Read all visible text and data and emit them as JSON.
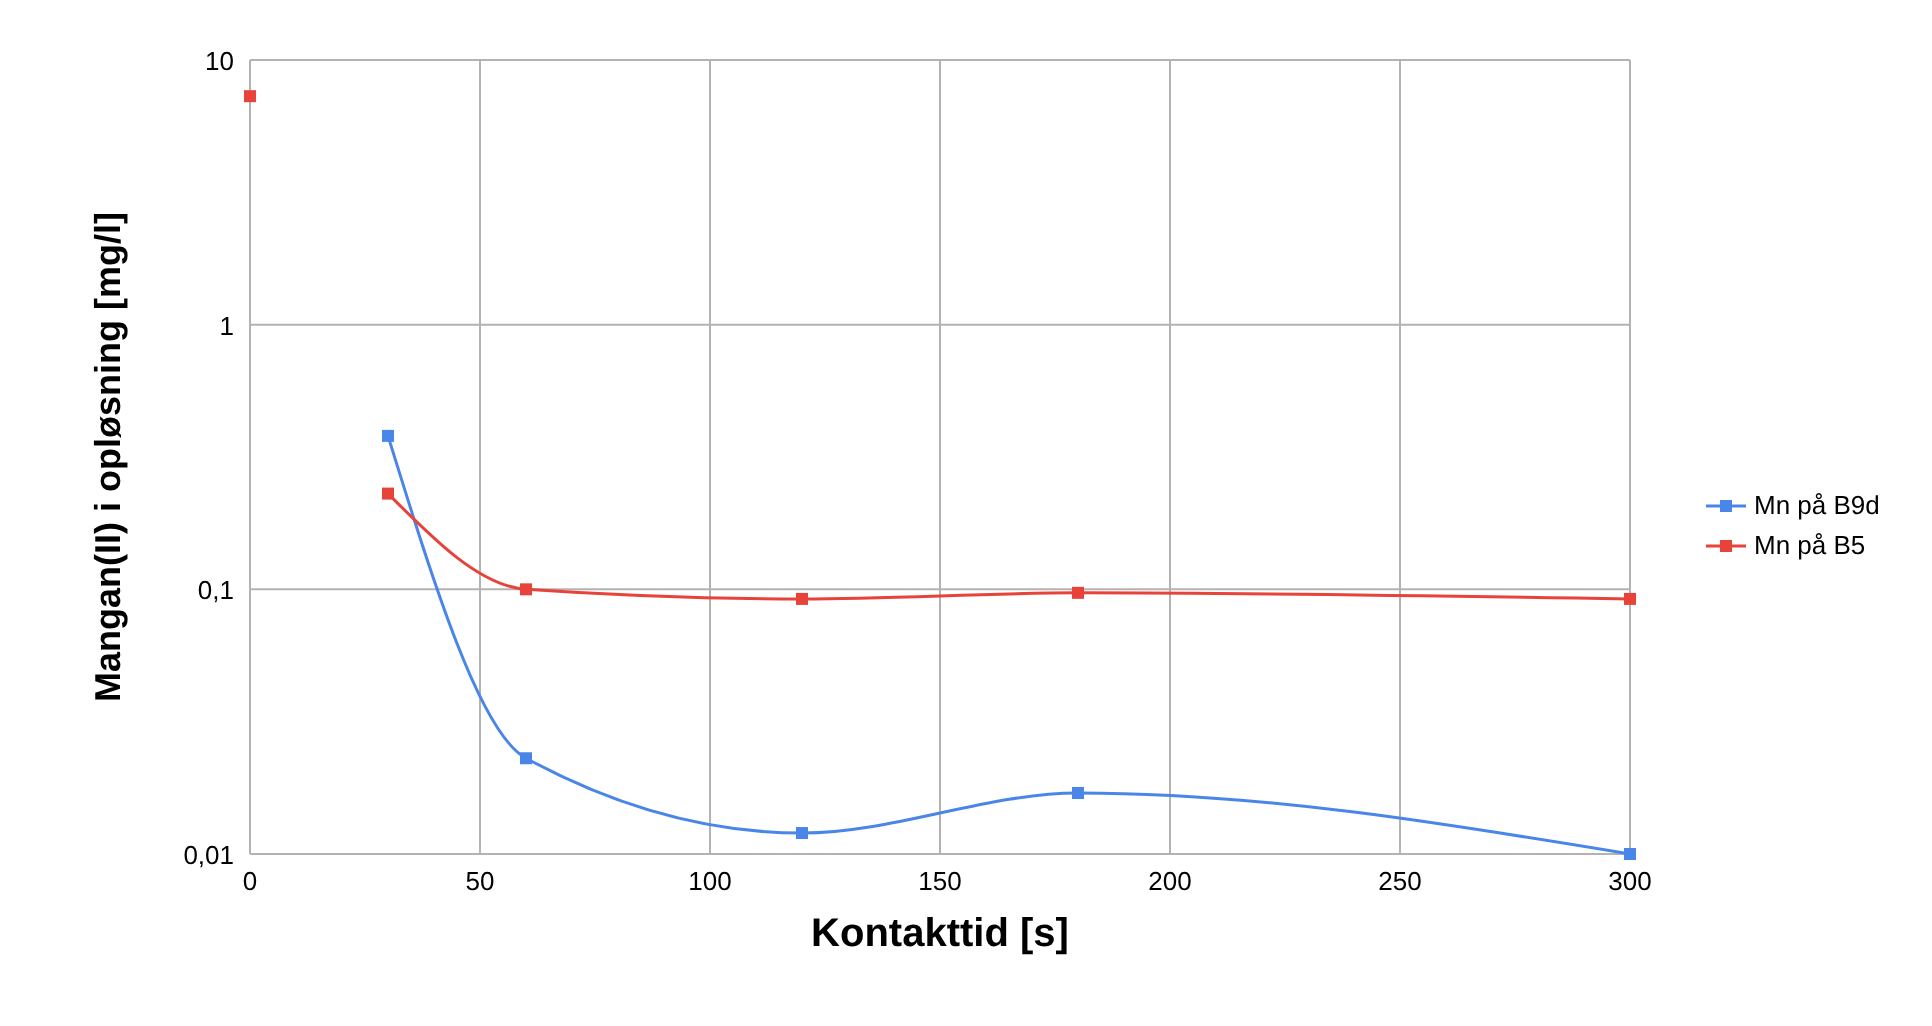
{
  "chart_data": {
    "type": "line",
    "xlabel": "Kontakttid [s]",
    "ylabel": "Mangan(II) i opløsning [mg/l]",
    "log": "y",
    "grid": true,
    "legend": "right",
    "marker": "square",
    "line_style": "solid",
    "xlim": [
      0,
      300
    ],
    "xticks": [
      0,
      50,
      100,
      150,
      200,
      250,
      300
    ],
    "ylim": [
      0.01,
      10
    ],
    "yticks": [
      {
        "value": 0.01,
        "label": "0,01"
      },
      {
        "value": 0.1,
        "label": "0,1"
      },
      1,
      10
    ],
    "series": [
      {
        "name": "Mn på B9d",
        "color": "#4a86e8",
        "x": [
          30,
          60,
          120,
          180,
          300
        ],
        "values": [
          0.38,
          0.023,
          0.012,
          0.017,
          0.01
        ]
      },
      {
        "name": "Mn på B5",
        "color": "#e8433a",
        "x": [
          30,
          60,
          120,
          180,
          300
        ],
        "values": [
          0.23,
          0.1,
          0.092,
          0.097,
          0.092
        ]
      },
      {
        "type": "scatter",
        "color": "#e8433a",
        "x": [
          0
        ],
        "values": [
          7.3
        ]
      }
    ]
  }
}
